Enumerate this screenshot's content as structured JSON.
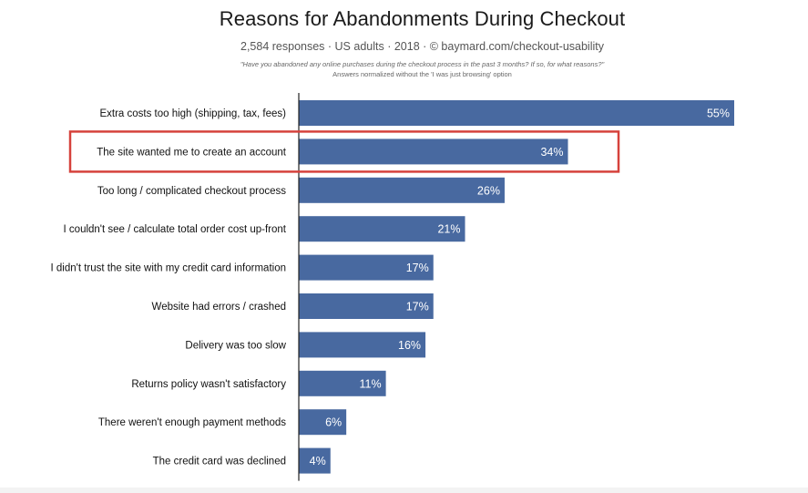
{
  "header": {
    "title": "Reasons for Abandonments During Checkout",
    "subtitle": "2,584 responses  ·  US adults  ·  2018  ·  ©  baymard.com/checkout-usability",
    "question": "\"Have you abandoned any online purchases during the checkout process in the past 3 months? If so, for what reasons?\"",
    "normalization_note": "Answers normalized without the 'I was just browsing' option"
  },
  "chart_data": {
    "type": "bar",
    "orientation": "horizontal",
    "title": "Reasons for Abandonments During Checkout",
    "categories": [
      "Extra costs too high (shipping, tax, fees)",
      "The site wanted me to create an account",
      "Too long / complicated checkout process",
      "I couldn't see / calculate total order cost up-front",
      "I didn't trust the site with my credit card information",
      "Website had errors / crashed",
      "Delivery was too slow",
      "Returns policy wasn't satisfactory",
      "There weren't enough payment methods",
      "The credit card was declined"
    ],
    "values": [
      55,
      34,
      26,
      21,
      17,
      17,
      16,
      11,
      6,
      4
    ],
    "value_labels": [
      "55%",
      "34%",
      "26%",
      "21%",
      "17%",
      "17%",
      "16%",
      "11%",
      "6%",
      "4%"
    ],
    "unit": "%",
    "xlim": [
      0,
      55
    ],
    "highlighted_index": 1,
    "colors": {
      "bar": "#4869a0",
      "highlight_box": "#d6423c",
      "axis": "#222222"
    },
    "grid": false,
    "legend": "none"
  }
}
